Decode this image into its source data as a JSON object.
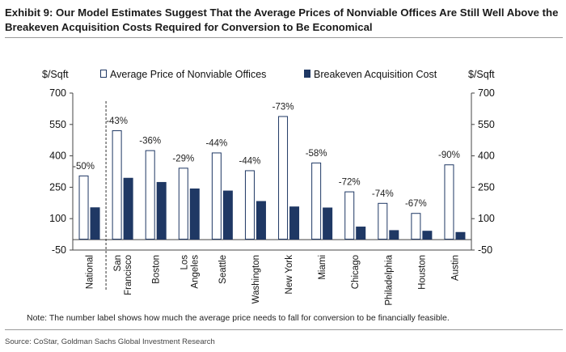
{
  "title": "Exhibit 9: Our Model Estimates Suggest That the Average Prices of Nonviable Offices Are Still Well Above the Breakeven Acquisition Costs Required for Conversion to Be Economical",
  "note": "Note: The number label shows how much the average price needs to fall for conversion to be financially feasible.",
  "source": "Source: CoStar, Goldman Sachs Global Investment Research",
  "chart_data": {
    "type": "bar",
    "y_unit_left": "$/Sqft",
    "y_unit_right": "$/Sqft",
    "ylim": [
      -50,
      700
    ],
    "yticks": [
      -50,
      100,
      250,
      400,
      550,
      700
    ],
    "legend_position": "top",
    "categories": [
      [
        "National"
      ],
      [
        "San",
        "Francisco"
      ],
      [
        "Boston"
      ],
      [
        "Los",
        "Angeles"
      ],
      [
        "Seattle"
      ],
      [
        "Washington"
      ],
      [
        "New York"
      ],
      [
        "Miami"
      ],
      [
        "Chicago"
      ],
      [
        "Philadelphia"
      ],
      [
        "Houston"
      ],
      [
        "Austin"
      ]
    ],
    "series": [
      {
        "name": "Average Price of Nonviable Offices",
        "color": "#ffffff",
        "border": "#1f3864",
        "values": [
          306,
          522,
          427,
          343,
          416,
          331,
          590,
          368,
          230,
          175,
          127,
          359
        ]
      },
      {
        "name": "Breakeven Acquisition Cost",
        "color": "#1f3864",
        "values": [
          154,
          295,
          275,
          244,
          234,
          184,
          158,
          153,
          62,
          45,
          42,
          36
        ]
      }
    ],
    "data_labels": [
      "-50%",
      "-43%",
      "-36%",
      "-29%",
      "-44%",
      "-44%",
      "-73%",
      "-58%",
      "-72%",
      "-74%",
      "-67%",
      "-90%"
    ],
    "separator_after_index": 0
  }
}
